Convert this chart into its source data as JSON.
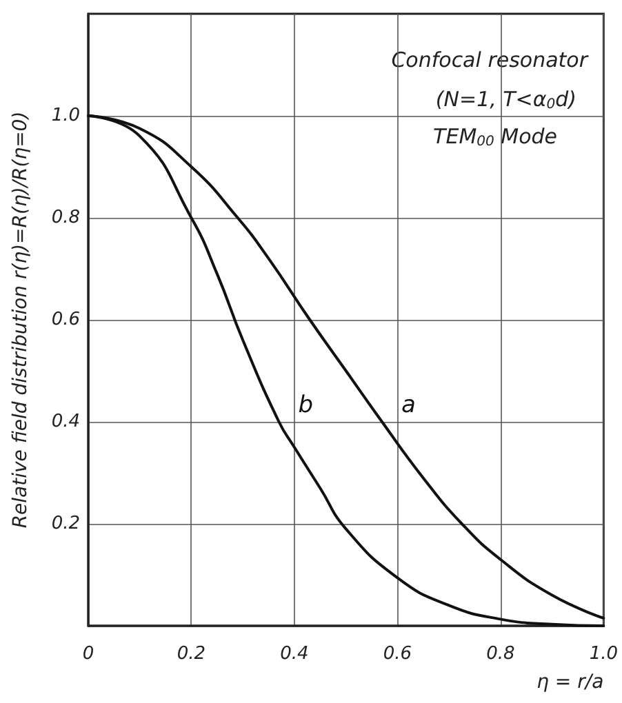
{
  "chart_data": {
    "type": "line",
    "xlabel": "η = r/a",
    "ylabel": "Relative field distribution r(η)=R(η)/R(η=0)",
    "annotations": [
      "Confocal resonator",
      "(N=1, T<α$_{0}$d)",
      "TEM$_{00}$ Mode"
    ],
    "series": [
      {
        "name": "a",
        "color": "#111111",
        "x": [
          0,
          0.1,
          0.2,
          0.29,
          0.35,
          0.43,
          0.5,
          0.57,
          0.65,
          0.725,
          0.8,
          0.9,
          1.0
        ],
        "values": [
          1.0,
          0.975,
          0.9,
          0.8,
          0.72,
          0.6,
          0.5,
          0.4,
          0.29,
          0.2,
          0.13,
          0.06,
          0.015
        ]
      },
      {
        "name": "b",
        "color": "#111111",
        "x": [
          0,
          0.1,
          0.2,
          0.25,
          0.3,
          0.37,
          0.4,
          0.45,
          0.5,
          0.6,
          0.7,
          0.8,
          0.9,
          1.0
        ],
        "values": [
          1.0,
          0.96,
          0.8,
          0.69,
          0.56,
          0.4,
          0.35,
          0.27,
          0.19,
          0.094,
          0.04,
          0.013,
          0.003,
          0
        ]
      }
    ],
    "xlim": [
      0,
      1
    ],
    "xticks": [
      0,
      0.2,
      0.4,
      0.6,
      0.8,
      {
        "value": 1,
        "label": "1.0"
      }
    ],
    "ylim": [
      0,
      1.2
    ],
    "yticks": [
      {
        "value": 0,
        "label": null
      },
      0.2,
      0.4,
      0.6,
      0.8,
      {
        "value": 1,
        "label": "1.0"
      }
    ],
    "grid": true,
    "legend": false,
    "marker": "none",
    "line_style": "solid"
  }
}
